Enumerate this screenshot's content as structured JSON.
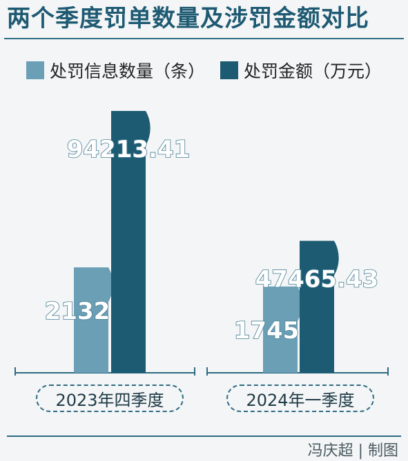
{
  "colors": {
    "title": "#1e5a72",
    "series1": "#6a9fb5",
    "series2": "#1d5b73",
    "axis": "#2c6a83"
  },
  "credit": "冯庆超 | 制图",
  "chart_data": {
    "type": "bar",
    "title": "两个季度罚单数量及涉罚金额对比",
    "categories": [
      "2023年四季度",
      "2024年一季度"
    ],
    "series": [
      {
        "name": "处罚信息数量（条）",
        "values": [
          2132,
          1745
        ],
        "labels": [
          "2132",
          "1745"
        ]
      },
      {
        "name": "处罚金额（万元）",
        "values": [
          94213.41,
          47465.43
        ],
        "labels": [
          "94213.41",
          "47465.43"
        ]
      }
    ],
    "legend_position": "top-left",
    "grid": false
  }
}
